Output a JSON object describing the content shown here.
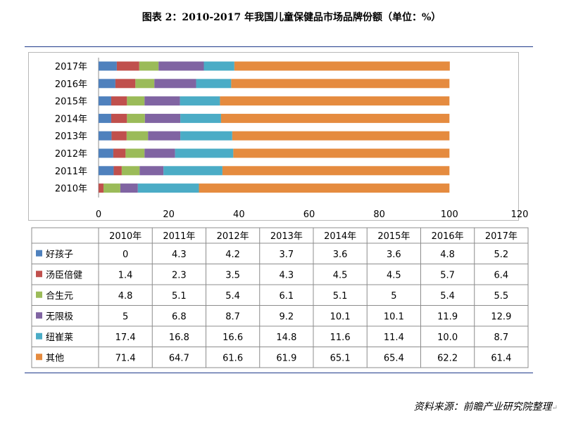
{
  "title": "图表 2：2010-2017 年我国儿童保健品市场品牌份额（单位：%）",
  "source": "资料来源：前瞻产业研究院整理",
  "chart_data": {
    "type": "bar",
    "orientation": "horizontal",
    "stacked": true,
    "categories": [
      "2010年",
      "2011年",
      "2012年",
      "2013年",
      "2014年",
      "2015年",
      "2016年",
      "2017年"
    ],
    "series": [
      {
        "name": "好孩子",
        "color": "#4f81bd",
        "values": [
          "0",
          "4.3",
          "4.2",
          "3.7",
          "3.6",
          "3.6",
          "4.8",
          "5.2"
        ]
      },
      {
        "name": "汤臣倍健",
        "color": "#c0504d",
        "values": [
          "1.4",
          "2.3",
          "3.5",
          "4.3",
          "4.5",
          "4.5",
          "5.7",
          "6.4"
        ]
      },
      {
        "name": "合生元",
        "color": "#9bbb59",
        "values": [
          "4.8",
          "5.1",
          "5.4",
          "6.1",
          "5.1",
          "5",
          "5.4",
          "5.5"
        ]
      },
      {
        "name": "无限极",
        "color": "#8064a2",
        "values": [
          "5",
          "6.8",
          "8.7",
          "9.2",
          "10.1",
          "10.1",
          "11.9",
          "12.9"
        ]
      },
      {
        "name": "纽崔莱",
        "color": "#4bacc6",
        "values": [
          "17.4",
          "16.8",
          "16.6",
          "14.8",
          "11.6",
          "11.4",
          "10.0",
          "8.7"
        ]
      },
      {
        "name": "其他",
        "color": "#e58b3f",
        "values": [
          "71.4",
          "64.7",
          "61.6",
          "61.9",
          "65.1",
          "65.4",
          "62.2",
          "61.4"
        ]
      }
    ],
    "xlim": [
      0,
      120
    ],
    "xticks": [
      "0",
      "20",
      "40",
      "60",
      "80",
      "100",
      "120"
    ],
    "grid": false,
    "legend": "data-table"
  }
}
